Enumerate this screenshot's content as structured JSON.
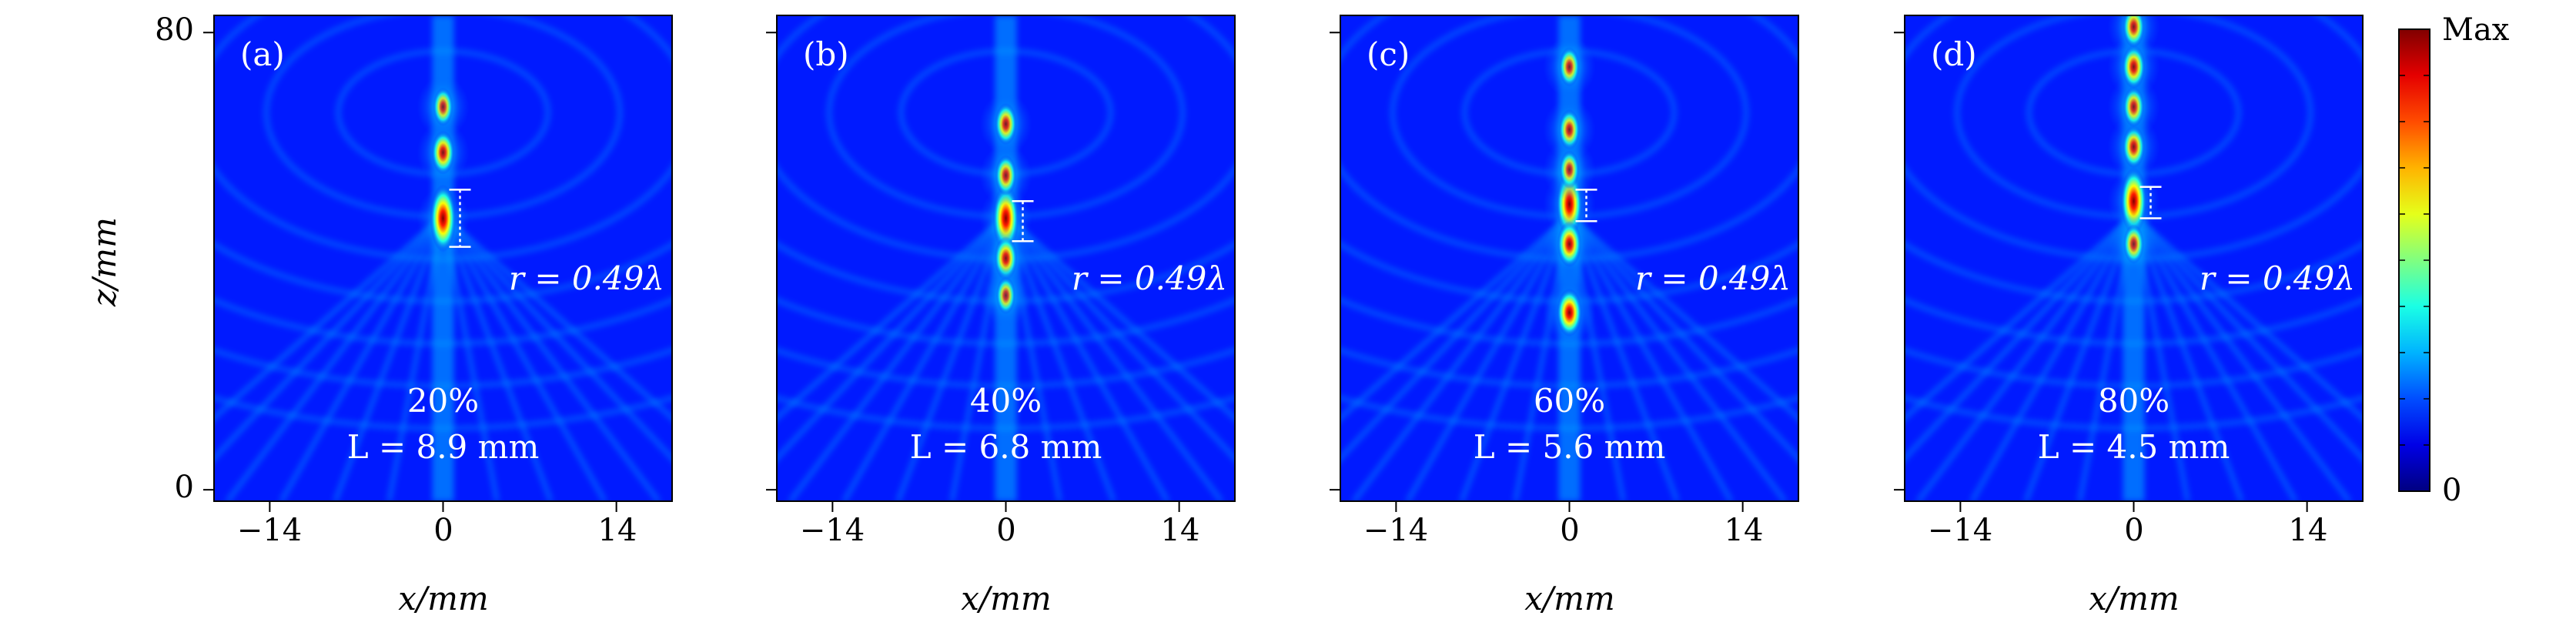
{
  "chart_data": {
    "type": "heatmap",
    "figure": {
      "colorbar": {
        "max_label": "Max",
        "min_label": "0",
        "colormap": "jet"
      },
      "y_axis": {
        "label": "z/mm",
        "ticks": [
          {
            "value": 0,
            "label": "0"
          },
          {
            "value": 80,
            "label": "80"
          }
        ]
      },
      "x_axis": {
        "label": "x/mm",
        "ticks": [
          {
            "value": -14,
            "label": "−14"
          },
          {
            "value": 0,
            "label": "0"
          },
          {
            "value": 14,
            "label": "14"
          }
        ]
      },
      "xlim": [
        -18.5,
        18.5
      ],
      "ylim": [
        -2,
        83
      ]
    },
    "panels": [
      {
        "id": "(a)",
        "percent": "20%",
        "length": "L = 8.9 mm",
        "radius": "r = 0.49λ",
        "hotspots": [
          {
            "z": 47.5,
            "intensity": 1.0
          },
          {
            "z": 59,
            "intensity": 0.75
          },
          {
            "z": 67,
            "intensity": 0.5
          }
        ],
        "marker": {
          "z_top": 52.5,
          "z_bottom": 42.5
        }
      },
      {
        "id": "(b)",
        "percent": "40%",
        "length": "L = 6.8 mm",
        "radius": "r = 0.49λ",
        "hotspots": [
          {
            "z": 47.5,
            "intensity": 1.0
          },
          {
            "z": 40.5,
            "intensity": 0.75
          },
          {
            "z": 55,
            "intensity": 0.6
          },
          {
            "z": 64,
            "intensity": 0.65
          },
          {
            "z": 34,
            "intensity": 0.45
          }
        ],
        "marker": {
          "z_top": 50.5,
          "z_bottom": 43.5
        }
      },
      {
        "id": "(c)",
        "percent": "60%",
        "length": "L = 5.6 mm",
        "radius": "r = 0.49λ",
        "hotspots": [
          {
            "z": 50,
            "intensity": 1.0
          },
          {
            "z": 43,
            "intensity": 0.85
          },
          {
            "z": 31,
            "intensity": 0.95
          },
          {
            "z": 63,
            "intensity": 0.6
          },
          {
            "z": 74,
            "intensity": 0.55
          },
          {
            "z": 56,
            "intensity": 0.5
          }
        ],
        "marker": {
          "z_top": 52.5,
          "z_bottom": 47
        }
      },
      {
        "id": "(d)",
        "percent": "80%",
        "length": "L = 4.5 mm",
        "radius": "r = 0.49λ",
        "hotspots": [
          {
            "z": 50.5,
            "intensity": 1.0
          },
          {
            "z": 43,
            "intensity": 0.55
          },
          {
            "z": 60,
            "intensity": 0.7
          },
          {
            "z": 67,
            "intensity": 0.6
          },
          {
            "z": 74,
            "intensity": 0.75
          },
          {
            "z": 81,
            "intensity": 0.65
          }
        ],
        "marker": {
          "z_top": 53,
          "z_bottom": 47.5
        }
      }
    ]
  }
}
